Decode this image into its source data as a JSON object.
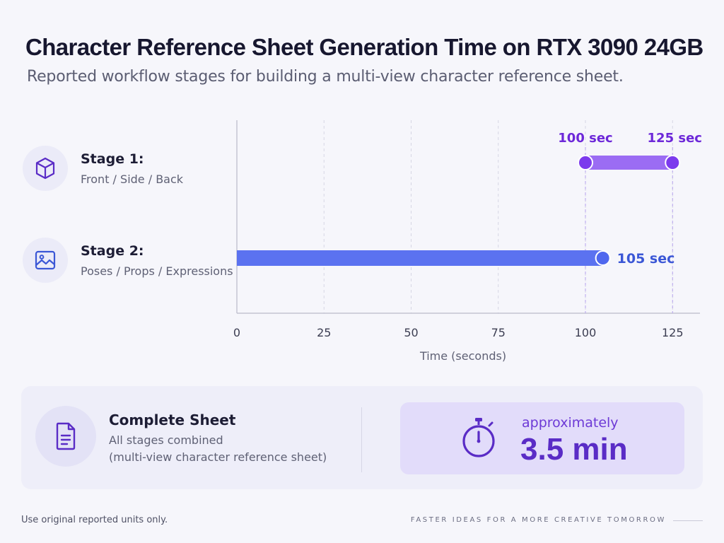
{
  "title": "Character Reference Sheet Generation Time on RTX 3090 24GB",
  "subtitle": "Reported workflow stages for building a multi-view character reference sheet.",
  "stages": [
    {
      "title": "Stage 1:",
      "desc": "Front / Side / Back",
      "icon": "cube-icon"
    },
    {
      "title": "Stage 2:",
      "desc": "Poses / Props / Expressions",
      "icon": "image-icon"
    }
  ],
  "chart_data": {
    "type": "bar",
    "orientation": "horizontal",
    "categories": [
      "Stage 1:",
      "Stage 2:"
    ],
    "xlabel": "Time (seconds)",
    "xlim": [
      0,
      130
    ],
    "xticks": [
      0,
      25,
      50,
      75,
      100,
      125
    ],
    "grid": "vertical dashed",
    "series": [
      {
        "category": "Stage 1:",
        "style": "range",
        "start": 100,
        "end": 125,
        "labels": [
          "100 sec",
          "125 sec"
        ],
        "color": "#9b6cf3",
        "accent": "#7c3aed",
        "label_color": "#6d28d9"
      },
      {
        "category": "Stage 2:",
        "style": "bar",
        "start": 0,
        "end": 105,
        "labels": [
          "105 sec"
        ],
        "color": "#5b72f0",
        "accent": "#4f67ee",
        "label_color": "#3b57d6"
      }
    ]
  },
  "summary": {
    "title": "Complete Sheet",
    "line1": "All stages combined",
    "line2": "(multi-view character reference sheet)",
    "icon": "document-icon",
    "approx": "approximately",
    "total": "3.5 min",
    "timer_icon": "stopwatch-icon"
  },
  "footer": {
    "note": "Use original reported units only.",
    "tagline": "FASTER IDEAS FOR A MORE CREATIVE TOMORROW"
  },
  "colors": {
    "purple": "#7c3aed",
    "blue": "#4f67ee",
    "card": "#eeeef9",
    "time_box": "#e2dcfa"
  }
}
